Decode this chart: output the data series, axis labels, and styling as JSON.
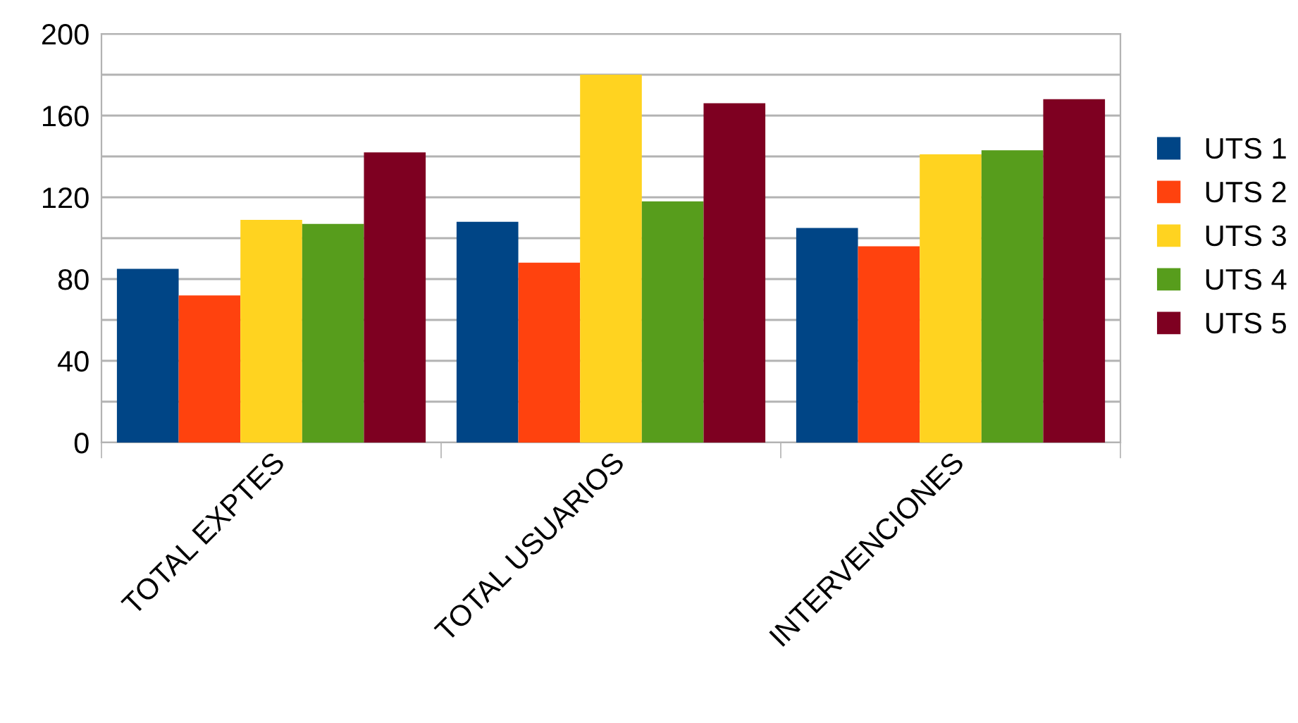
{
  "chart_data": {
    "type": "bar",
    "categories": [
      "TOTAL EXPTES",
      "TOTAL USUARIOS",
      "INTERVENCIONES"
    ],
    "series": [
      {
        "name": "UTS 1",
        "color": "#004586",
        "values": [
          85,
          108,
          105
        ]
      },
      {
        "name": "UTS 2",
        "color": "#ff420e",
        "values": [
          72,
          88,
          96
        ]
      },
      {
        "name": "UTS 3",
        "color": "#ffd320",
        "values": [
          109,
          180,
          141
        ]
      },
      {
        "name": "UTS 4",
        "color": "#579d1c",
        "values": [
          107,
          118,
          143
        ]
      },
      {
        "name": "UTS 5",
        "color": "#7e0021",
        "values": [
          142,
          166,
          168
        ]
      }
    ],
    "ylim": [
      0,
      200
    ],
    "yticks": [
      0,
      {
        "value": 20,
        "label": null
      },
      40,
      {
        "value": 60,
        "label": null
      },
      80,
      {
        "value": 100,
        "label": null
      },
      120,
      {
        "value": 140,
        "label": null
      },
      160,
      {
        "value": 180,
        "label": null
      },
      200
    ],
    "grid": "y",
    "legend": "right"
  }
}
